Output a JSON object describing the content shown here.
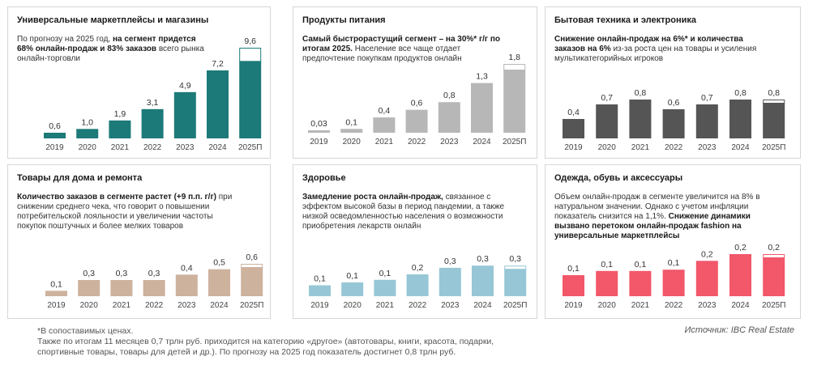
{
  "chart_data": [
    {
      "type": "bar",
      "title": "Универсальные маркетплейсы и магазины",
      "description": [
        {
          "text": "По прогнозу на 2025 год, ",
          "bold": false
        },
        {
          "text": "на сегмент придется 68% онлайн-продаж и 83% заказов",
          "bold": true
        },
        {
          "text": " всего рынка онлайн-торговли",
          "bold": false
        }
      ],
      "categories": [
        "2019",
        "2020",
        "2021",
        "2022",
        "2023",
        "2024",
        "2025П"
      ],
      "values": [
        0.6,
        1.0,
        1.9,
        3.1,
        4.9,
        7.2,
        9.6
      ],
      "labels": [
        "0,6",
        "1,0",
        "1,9",
        "3,1",
        "4,9",
        "7,2",
        "9,6"
      ],
      "forecast_top": 1.4,
      "ylim": [
        0,
        9.6
      ],
      "color": "#1c7a78"
    },
    {
      "type": "bar",
      "title": "Продукты питания",
      "description": [
        {
          "text": "Самый быстрорастущий сегмент – на 30%* г/г по итогам 2025.",
          "bold": true
        },
        {
          "text": " Население все чаще отдает предпочтение покупкам продуктов онлайн",
          "bold": false
        }
      ],
      "categories": [
        "2019",
        "2020",
        "2021",
        "2022",
        "2023",
        "2024",
        "2025П"
      ],
      "values": [
        0.03,
        0.1,
        0.4,
        0.6,
        0.8,
        1.3,
        1.8
      ],
      "labels": [
        "0,03",
        "0,1",
        "0,4",
        "0,6",
        "0,8",
        "1,3",
        "1,8"
      ],
      "forecast_top": 0.15,
      "ylim": [
        0,
        1.8
      ],
      "color": "#b7b7b7"
    },
    {
      "type": "bar",
      "title": "Бытовая техника и электроника",
      "description": [
        {
          "text": "Снижение онлайн-продаж на 6%* и количества заказов на 6%",
          "bold": true
        },
        {
          "text": " из-за роста цен на товары и усиления мультикатегорийных игроков",
          "bold": false
        }
      ],
      "categories": [
        "2019",
        "2020",
        "2021",
        "2022",
        "2023",
        "2024",
        "2025П"
      ],
      "values": [
        0.4,
        0.7,
        0.8,
        0.6,
        0.7,
        0.8,
        0.8
      ],
      "labels": [
        "0,4",
        "0,7",
        "0,8",
        "0,6",
        "0,7",
        "0,8",
        "0,8"
      ],
      "forecast_top": 0.06,
      "ylim": [
        0,
        0.8
      ],
      "color": "#555555"
    },
    {
      "type": "bar",
      "title": "Товары для дома и ремонта",
      "description": [
        {
          "text": "Количество заказов в сегменте растет (+9 п.п. г/г)",
          "bold": true
        },
        {
          "text": " при снижении среднего чека, что говорит о повышении потребительской лояльности и увеличении частоты покупок поштучных и более мелких товаров",
          "bold": false
        }
      ],
      "categories": [
        "2019",
        "2020",
        "2021",
        "2022",
        "2023",
        "2024",
        "2025П"
      ],
      "values": [
        0.1,
        0.3,
        0.3,
        0.3,
        0.4,
        0.5,
        0.6
      ],
      "labels": [
        "0,1",
        "0,3",
        "0,3",
        "0,3",
        "0,4",
        "0,5",
        "0,6"
      ],
      "forecast_top": 0.03,
      "ylim": [
        0,
        0.6
      ],
      "color": "#cdb29e"
    },
    {
      "type": "bar",
      "title": "Здоровье",
      "description": [
        {
          "text": "Замедление роста онлайн-продаж,",
          "bold": true
        },
        {
          "text": " связанное с эффектом высокой базы в период пандемии, а также низкой осведомленностью населения о возможности приобретения лекарств онлайн",
          "bold": false
        }
      ],
      "categories": [
        "2019",
        "2020",
        "2021",
        "2022",
        "2023",
        "2024",
        "2025П"
      ],
      "values": [
        0.1,
        0.1,
        0.1,
        0.2,
        0.3,
        0.3,
        0.3
      ],
      "labels": [
        "0,1",
        "0,1",
        "0,1",
        "0,2",
        "0,3",
        "0,3",
        "0,3"
      ],
      "heights_rel": [
        0.3,
        0.38,
        0.45,
        0.6,
        0.78,
        0.84,
        0.84
      ],
      "forecast_top": 0.04,
      "ylim": [
        0,
        1
      ],
      "color": "#97c7d6"
    },
    {
      "type": "bar",
      "title": "Одежда, обувь и аксессуары",
      "description": [
        {
          "text": "Объем онлайн-продаж в сегменте увеличится на 8% в натуральном значении. Однако с учетом инфляции показатель снизится на 1,1%. ",
          "bold": false
        },
        {
          "text": "Снижение динамики вызвано перетоком онлайн-продаж fashion на универсальные маркетплейсы",
          "bold": true
        }
      ],
      "categories": [
        "2019",
        "2020",
        "2021",
        "2022",
        "2023",
        "2024",
        "2025П"
      ],
      "values": [
        0.1,
        0.1,
        0.1,
        0.1,
        0.2,
        0.2,
        0.2
      ],
      "labels": [
        "0,1",
        "0,1",
        "0,1",
        "0,1",
        "0,2",
        "0,2",
        "0,2"
      ],
      "heights_rel": [
        0.5,
        0.6,
        0.6,
        0.63,
        0.84,
        1.0,
        1.0
      ],
      "forecast_top": 0.05,
      "ylim": [
        0,
        1
      ],
      "color": "#f2576a"
    }
  ],
  "footnote": {
    "line1": "*В сопоставимых ценах.",
    "line2": "Также по итогам 11 месяцев 0,7 трлн руб. приходится на категорию «другое» (автотовары, книги, красота, подарки,",
    "line3": "спортивные товары, товары для детей и др.). По прогнозу на 2025 год показатель достигнет 0,8 трлн руб."
  },
  "source": "Источник: IBC Real Estate"
}
